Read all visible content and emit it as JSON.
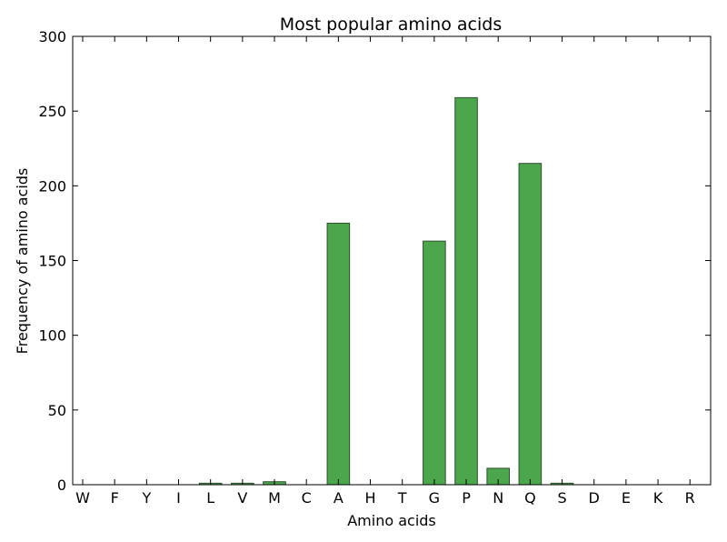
{
  "chart_data": {
    "type": "bar",
    "title": "Most popular amino acids",
    "xlabel": "Amino acids",
    "ylabel": "Frequency of amino acids",
    "categories": [
      "W",
      "F",
      "Y",
      "I",
      "L",
      "V",
      "M",
      "C",
      "A",
      "H",
      "T",
      "G",
      "P",
      "N",
      "Q",
      "S",
      "D",
      "E",
      "K",
      "R"
    ],
    "values": [
      0,
      0,
      0,
      0,
      1,
      1,
      2,
      0,
      175,
      0,
      0,
      163,
      259,
      11,
      215,
      1,
      0,
      0,
      0,
      0
    ],
    "ylim": [
      0,
      300
    ],
    "yticks": [
      0,
      50,
      100,
      150,
      200,
      250,
      300
    ],
    "grid": false,
    "legend": "none",
    "colors": {
      "bar_fill": "#4ca64c",
      "bar_edge": "#2f4f2f",
      "axis": "#000000",
      "background": "#ffffff"
    }
  }
}
